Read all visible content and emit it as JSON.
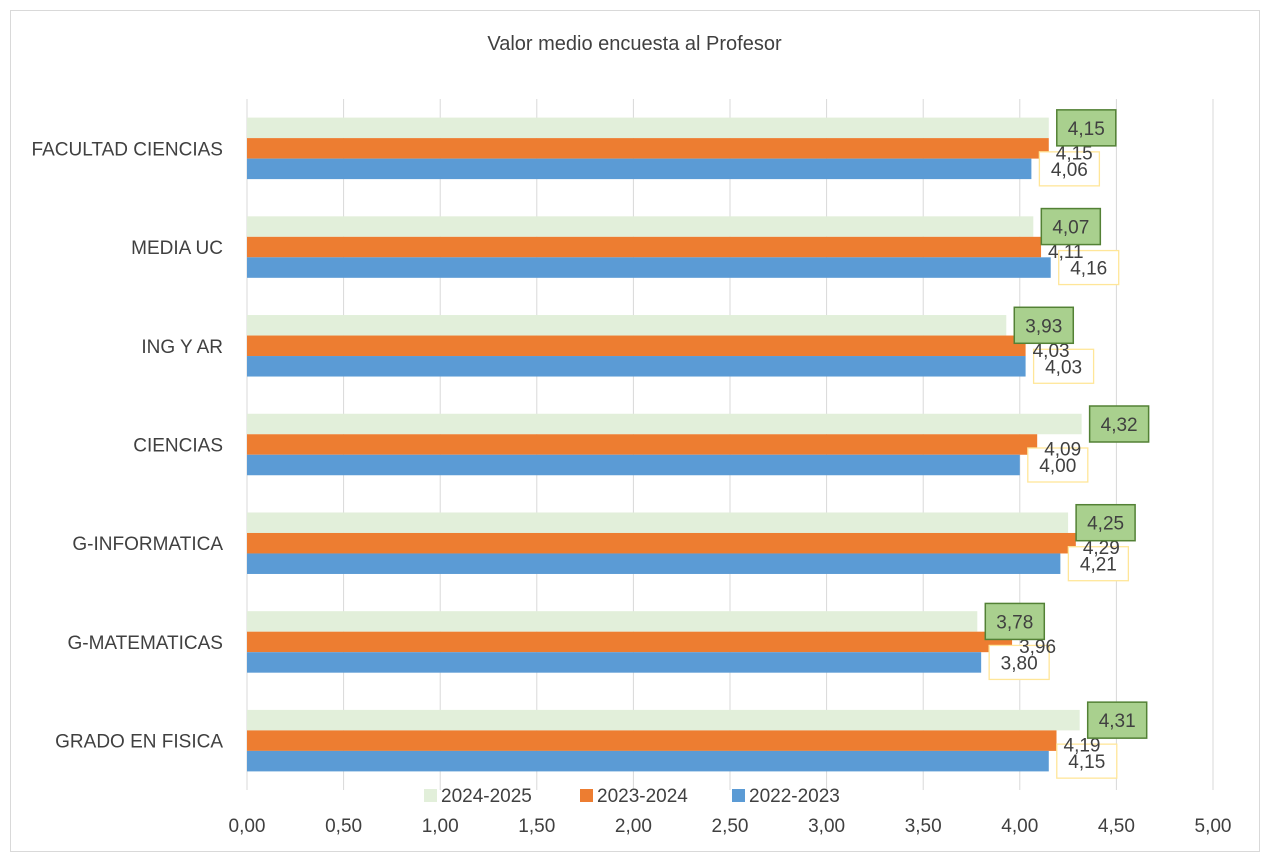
{
  "chart_data": {
    "type": "bar",
    "orientation": "horizontal",
    "title": "Valor medio encuesta al Profesor",
    "categories": [
      "FACULTAD CIENCIAS",
      "MEDIA UC",
      "ING Y AR",
      "CIENCIAS",
      "G-INFORMATICA",
      "G-MATEMATICAS",
      "GRADO EN FISICA"
    ],
    "series": [
      {
        "name": "2024-2025",
        "color": "#e2efda",
        "values": [
          4.15,
          4.07,
          3.93,
          4.32,
          4.25,
          3.78,
          4.31
        ],
        "labels": [
          "4,15",
          "4,07",
          "3,93",
          "4,32",
          "4,25",
          "3,78",
          "4,31"
        ]
      },
      {
        "name": "2023-2024",
        "color": "#ed7d31",
        "values": [
          4.15,
          4.11,
          4.03,
          4.09,
          4.29,
          3.96,
          4.19
        ],
        "labels": [
          "4,15",
          "4,11",
          "4,03",
          "4,09",
          "4,29",
          "3,96",
          "4,19"
        ]
      },
      {
        "name": "2022-2023",
        "color": "#5b9bd5",
        "values": [
          4.06,
          4.16,
          4.03,
          4.0,
          4.21,
          3.8,
          4.15
        ],
        "labels": [
          "4,06",
          "4,16",
          "4,03",
          "4,00",
          "4,21",
          "3,80",
          "4,15"
        ]
      }
    ],
    "xlim": [
      0,
      5
    ],
    "xticks": [
      "0,00",
      "0,50",
      "1,00",
      "1,50",
      "2,00",
      "2,50",
      "3,00",
      "3,50",
      "4,00",
      "4,50",
      "5,00"
    ],
    "grid": true,
    "legend_position": "bottom"
  }
}
